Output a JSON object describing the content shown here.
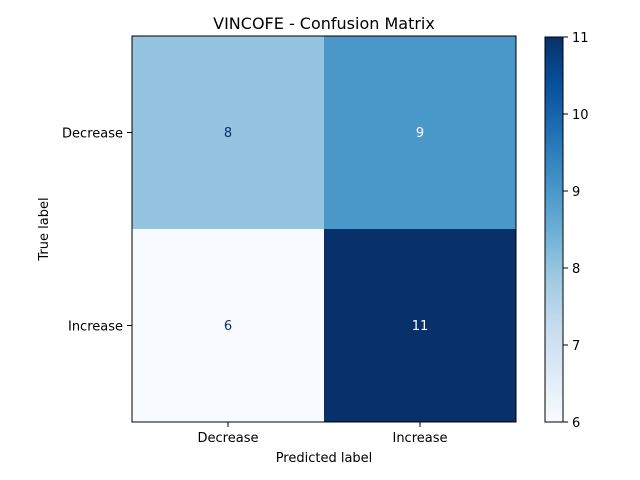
{
  "chart_data": {
    "type": "heatmap",
    "title": "VINCOFE - Confusion Matrix",
    "xlabel": "Predicted label",
    "ylabel": "True label",
    "x_categories": [
      "Decrease",
      "Increase"
    ],
    "y_categories": [
      "Decrease",
      "Increase"
    ],
    "values": [
      [
        8,
        9
      ],
      [
        6,
        11
      ]
    ],
    "cell_labels": [
      [
        "8",
        "9"
      ],
      [
        "6",
        "11"
      ]
    ],
    "colormap": "Blues",
    "colorbar": {
      "range": [
        6,
        11
      ],
      "ticks": [
        "6",
        "7",
        "8",
        "9",
        "10",
        "11"
      ]
    },
    "grid": false
  }
}
